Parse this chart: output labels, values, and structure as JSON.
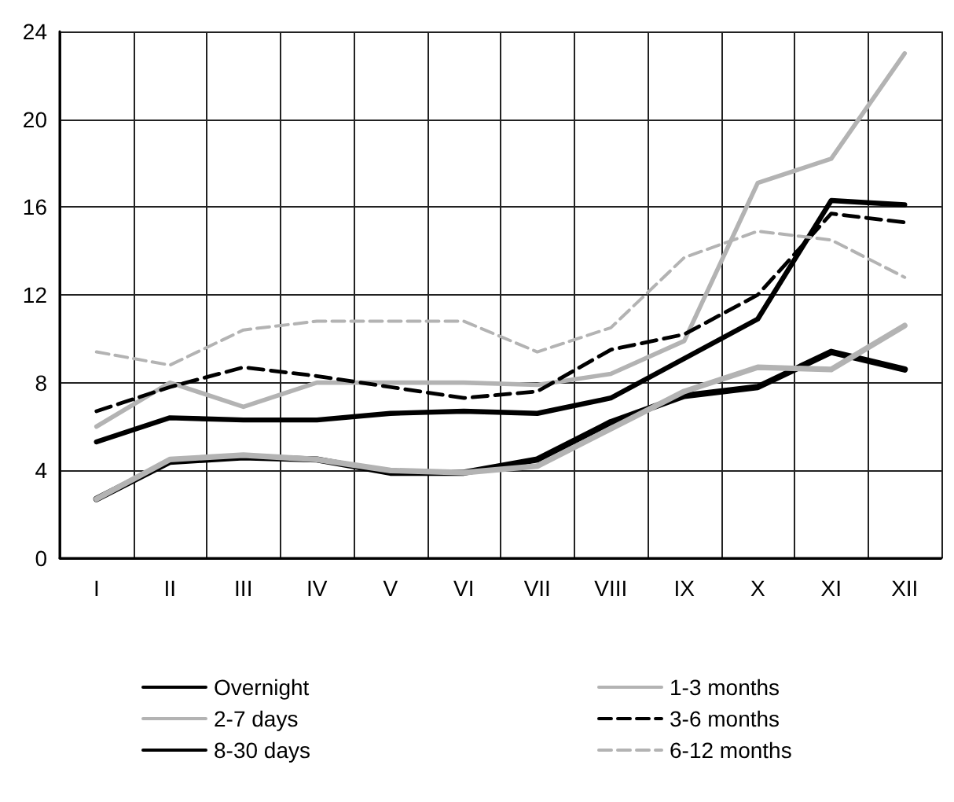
{
  "chart_data": {
    "type": "line",
    "categories": [
      "I",
      "II",
      "III",
      "IV",
      "V",
      "VI",
      "VII",
      "VIII",
      "IX",
      "X",
      "XI",
      "XII"
    ],
    "ylim": [
      0,
      24
    ],
    "yticks": [
      0,
      4,
      8,
      12,
      16,
      20,
      24
    ],
    "grid": true,
    "legend": "bottom",
    "marker": "none",
    "series": [
      {
        "name": "Overnight",
        "color": "#000000",
        "line_style": "solid",
        "values": [
          2.7,
          4.4,
          4.6,
          4.5,
          3.9,
          3.9,
          4.5,
          6.2,
          7.4,
          7.8,
          9.4,
          8.6
        ]
      },
      {
        "name": "2-7 days",
        "color": "#b3b3b3",
        "line_style": "solid",
        "values": [
          2.7,
          4.5,
          4.7,
          4.5,
          4.0,
          3.9,
          4.2,
          5.9,
          7.6,
          8.7,
          8.6,
          10.6
        ]
      },
      {
        "name": "8-30 days",
        "color": "#000000",
        "line_style": "solid",
        "values": [
          5.3,
          6.4,
          6.3,
          6.3,
          6.6,
          6.7,
          6.6,
          7.3,
          9.1,
          10.9,
          16.3,
          16.1
        ]
      },
      {
        "name": "1-3 months",
        "color": "#b3b3b3",
        "line_style": "solid",
        "values": [
          6.0,
          8.0,
          6.9,
          8.0,
          8.0,
          8.0,
          7.9,
          8.4,
          9.9,
          17.1,
          18.2,
          23.0
        ]
      },
      {
        "name": "3-6 months",
        "color": "#000000",
        "line_style": "dashed",
        "values": [
          6.7,
          7.8,
          8.7,
          8.3,
          7.8,
          7.3,
          7.6,
          9.5,
          10.2,
          12.0,
          15.7,
          15.3
        ]
      },
      {
        "name": "6-12 months",
        "color": "#b3b3b3",
        "line_style": "dashed",
        "values": [
          9.4,
          8.8,
          10.4,
          10.8,
          10.8,
          10.8,
          9.4,
          10.5,
          13.7,
          14.9,
          14.5,
          12.8
        ]
      }
    ]
  }
}
